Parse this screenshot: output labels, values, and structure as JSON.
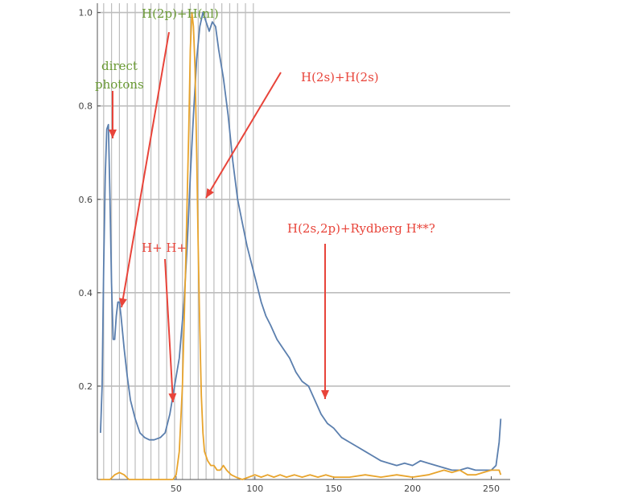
{
  "colors": {
    "series_blue": "#5b7fae",
    "series_orange": "#e8a42c",
    "annotation_red": "#e8443a",
    "annotation_green": "#6a9a34",
    "grid": "#bdbdbd"
  },
  "chart_data": {
    "type": "line",
    "title": "",
    "xlabel": "",
    "ylabel": "",
    "xlim": [
      0,
      262
    ],
    "ylim": [
      0,
      1.02
    ],
    "x_ticks": [
      50,
      100,
      150,
      200,
      250
    ],
    "y_ticks": [
      0.2,
      0.4,
      0.6,
      0.8,
      1.0
    ],
    "x_tick_labels": [
      "50",
      "100",
      "150",
      "200",
      "250"
    ],
    "y_tick_labels": [
      "0.2",
      "0.4",
      "0.6",
      "0.8",
      "1.0"
    ],
    "horizontal_grid_at": [
      0.2,
      0.4,
      0.6,
      0.8,
      1.0
    ],
    "vertical_grid_at": [
      4,
      9,
      14,
      19,
      24,
      29,
      34,
      39,
      44,
      49,
      54,
      59,
      64,
      69,
      74,
      79,
      84,
      89,
      94,
      99
    ],
    "legend": "none",
    "series": [
      {
        "color": "#5b7fae",
        "points": [
          [
            2,
            0.1
          ],
          [
            3,
            0.2
          ],
          [
            4,
            0.45
          ],
          [
            5,
            0.65
          ],
          [
            6,
            0.75
          ],
          [
            7,
            0.76
          ],
          [
            8,
            0.6
          ],
          [
            9,
            0.42
          ],
          [
            10,
            0.3
          ],
          [
            11,
            0.3
          ],
          [
            12,
            0.35
          ],
          [
            13,
            0.38
          ],
          [
            14,
            0.38
          ],
          [
            15,
            0.35
          ],
          [
            17,
            0.28
          ],
          [
            19,
            0.22
          ],
          [
            21,
            0.17
          ],
          [
            24,
            0.13
          ],
          [
            27,
            0.1
          ],
          [
            30,
            0.09
          ],
          [
            33,
            0.085
          ],
          [
            36,
            0.085
          ],
          [
            40,
            0.09
          ],
          [
            43,
            0.1
          ],
          [
            46,
            0.14
          ],
          [
            49,
            0.2
          ],
          [
            52,
            0.26
          ],
          [
            55,
            0.38
          ],
          [
            57,
            0.5
          ],
          [
            59,
            0.65
          ],
          [
            61,
            0.78
          ],
          [
            63,
            0.9
          ],
          [
            65,
            0.97
          ],
          [
            67,
            1.0
          ],
          [
            69,
            0.98
          ],
          [
            71,
            0.96
          ],
          [
            73,
            0.98
          ],
          [
            75,
            0.97
          ],
          [
            77,
            0.92
          ],
          [
            80,
            0.86
          ],
          [
            83,
            0.78
          ],
          [
            86,
            0.68
          ],
          [
            89,
            0.6
          ],
          [
            92,
            0.55
          ],
          [
            95,
            0.5
          ],
          [
            98,
            0.46
          ],
          [
            101,
            0.42
          ],
          [
            104,
            0.38
          ],
          [
            107,
            0.35
          ],
          [
            110,
            0.33
          ],
          [
            114,
            0.3
          ],
          [
            118,
            0.28
          ],
          [
            122,
            0.26
          ],
          [
            126,
            0.23
          ],
          [
            130,
            0.21
          ],
          [
            134,
            0.2
          ],
          [
            138,
            0.17
          ],
          [
            142,
            0.14
          ],
          [
            146,
            0.12
          ],
          [
            150,
            0.11
          ],
          [
            155,
            0.09
          ],
          [
            160,
            0.08
          ],
          [
            165,
            0.07
          ],
          [
            170,
            0.06
          ],
          [
            175,
            0.05
          ],
          [
            180,
            0.04
          ],
          [
            185,
            0.035
          ],
          [
            190,
            0.03
          ],
          [
            195,
            0.035
          ],
          [
            200,
            0.03
          ],
          [
            205,
            0.04
          ],
          [
            210,
            0.035
          ],
          [
            215,
            0.03
          ],
          [
            220,
            0.025
          ],
          [
            225,
            0.02
          ],
          [
            230,
            0.02
          ],
          [
            235,
            0.025
          ],
          [
            240,
            0.02
          ],
          [
            245,
            0.02
          ],
          [
            250,
            0.02
          ],
          [
            253,
            0.03
          ],
          [
            255,
            0.08
          ],
          [
            256,
            0.13
          ]
        ]
      },
      {
        "color": "#e8a42c",
        "points": [
          [
            2,
            0
          ],
          [
            8,
            0
          ],
          [
            11,
            0.01
          ],
          [
            14,
            0.015
          ],
          [
            17,
            0.01
          ],
          [
            20,
            0
          ],
          [
            25,
            0
          ],
          [
            30,
            0
          ],
          [
            35,
            0
          ],
          [
            40,
            0
          ],
          [
            45,
            0
          ],
          [
            48,
            0
          ],
          [
            50,
            0.01
          ],
          [
            52,
            0.06
          ],
          [
            54,
            0.2
          ],
          [
            56,
            0.45
          ],
          [
            58,
            0.75
          ],
          [
            59,
            0.92
          ],
          [
            60,
            1.0
          ],
          [
            61,
            0.97
          ],
          [
            62,
            0.88
          ],
          [
            63,
            0.7
          ],
          [
            64,
            0.5
          ],
          [
            65,
            0.32
          ],
          [
            66,
            0.18
          ],
          [
            67,
            0.1
          ],
          [
            68,
            0.06
          ],
          [
            70,
            0.04
          ],
          [
            72,
            0.03
          ],
          [
            74,
            0.03
          ],
          [
            76,
            0.02
          ],
          [
            78,
            0.02
          ],
          [
            80,
            0.03
          ],
          [
            82,
            0.02
          ],
          [
            85,
            0.01
          ],
          [
            88,
            0.005
          ],
          [
            92,
            0
          ],
          [
            96,
            0.005
          ],
          [
            100,
            0.01
          ],
          [
            104,
            0.005
          ],
          [
            108,
            0.01
          ],
          [
            112,
            0.005
          ],
          [
            116,
            0.01
          ],
          [
            120,
            0.005
          ],
          [
            125,
            0.01
          ],
          [
            130,
            0.005
          ],
          [
            135,
            0.01
          ],
          [
            140,
            0.005
          ],
          [
            145,
            0.01
          ],
          [
            150,
            0.005
          ],
          [
            160,
            0.005
          ],
          [
            170,
            0.01
          ],
          [
            180,
            0.005
          ],
          [
            190,
            0.01
          ],
          [
            200,
            0.005
          ],
          [
            210,
            0.01
          ],
          [
            220,
            0.02
          ],
          [
            225,
            0.015
          ],
          [
            230,
            0.02
          ],
          [
            235,
            0.01
          ],
          [
            240,
            0.01
          ],
          [
            245,
            0.015
          ],
          [
            250,
            0.02
          ],
          [
            255,
            0.02
          ],
          [
            256,
            0.01
          ]
        ]
      }
    ],
    "annotations": [
      {
        "text": "H(2p)+H(nl)",
        "color": "green"
      },
      {
        "text": "direct",
        "color": "green"
      },
      {
        "text": "photons",
        "color": "green"
      },
      {
        "text": "H(2s)+H(2s)",
        "color": "red"
      },
      {
        "text": "H+ H+",
        "color": "red"
      },
      {
        "text": "H(2s,2p)+Rydberg H**?",
        "color": "red"
      }
    ]
  }
}
